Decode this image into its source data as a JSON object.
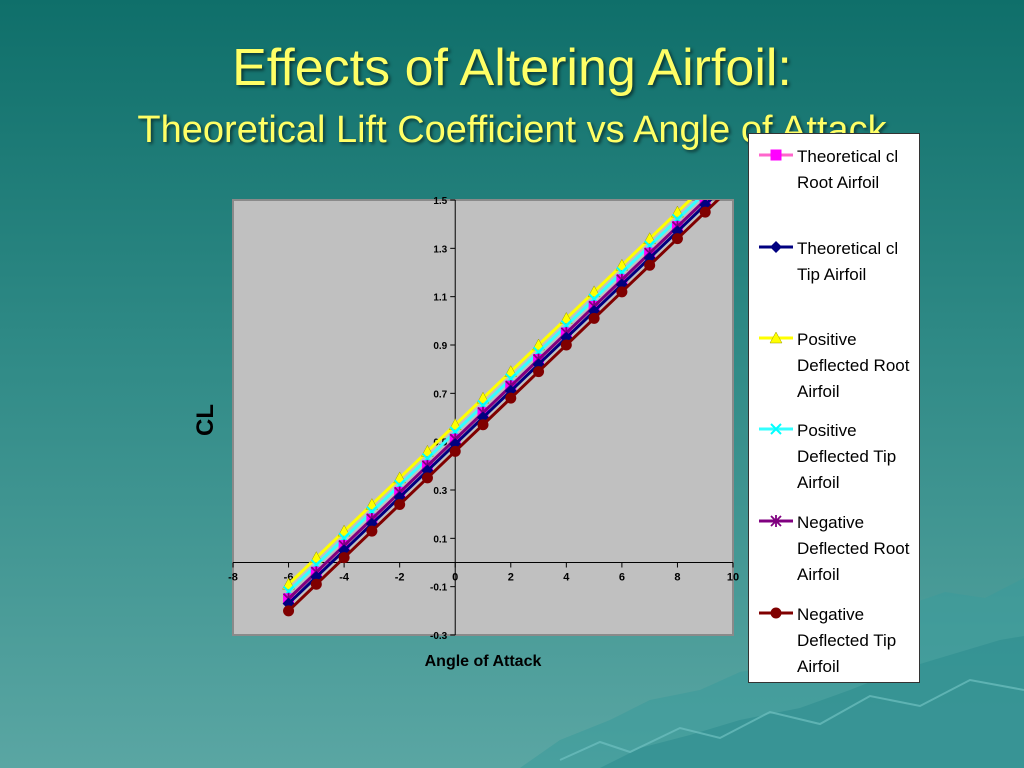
{
  "slide": {
    "title": "Effects of Altering Airfoil:",
    "subtitle": "Theoretical Lift Coefficient vs Angle of Attack"
  },
  "chart_data": {
    "type": "line",
    "xlabel": "Angle of Attack",
    "ylabel": "CL",
    "xlim": [
      -8,
      10
    ],
    "ylim": [
      -0.3,
      1.5
    ],
    "x_ticks": [
      -8,
      -6,
      -4,
      -2,
      0,
      2,
      4,
      6,
      8,
      10
    ],
    "y_ticks": [
      -0.3,
      -0.1,
      0.1,
      0.3,
      0.5,
      0.7,
      0.9,
      1.1,
      1.3,
      1.5
    ],
    "plot_background": "#c0c0c0",
    "grid": false,
    "legend_position": "right",
    "x": [
      -6,
      -5,
      -4,
      -3,
      -2,
      -1,
      0,
      1,
      2,
      3,
      4,
      5,
      6,
      7,
      8,
      9,
      10
    ],
    "series": [
      {
        "name": "Theoretical cl Root Airfoil",
        "color": "#ff00ff",
        "line_color": "#ff66cc",
        "marker": "square",
        "values": [
          -0.15,
          -0.04,
          0.07,
          0.18,
          0.29,
          0.4,
          0.51,
          0.62,
          0.73,
          0.84,
          0.95,
          1.06,
          1.17,
          1.28,
          1.39,
          1.5,
          1.61
        ]
      },
      {
        "name": "Theoretical cl Tip Airfoil",
        "color": "#000080",
        "line_color": "#000080",
        "marker": "diamond",
        "values": [
          -0.17,
          -0.06,
          0.05,
          0.16,
          0.27,
          0.38,
          0.49,
          0.6,
          0.71,
          0.82,
          0.93,
          1.04,
          1.15,
          1.26,
          1.37,
          1.48,
          1.59
        ]
      },
      {
        "name": "Positive Deflected Root Airfoil",
        "color": "#ffff00",
        "line_color": "#ffff00",
        "marker": "triangle",
        "values": [
          -0.09,
          0.02,
          0.13,
          0.24,
          0.35,
          0.46,
          0.57,
          0.68,
          0.79,
          0.9,
          1.01,
          1.12,
          1.23,
          1.34,
          1.45,
          1.56,
          1.67
        ]
      },
      {
        "name": "Positive Deflected Tip Airfoil",
        "color": "#00ffff",
        "line_color": "#33ffff",
        "marker": "x",
        "values": [
          -0.12,
          -0.01,
          0.1,
          0.21,
          0.32,
          0.43,
          0.54,
          0.65,
          0.76,
          0.87,
          0.98,
          1.09,
          1.2,
          1.31,
          1.42,
          1.53,
          1.64
        ]
      },
      {
        "name": "Negative Deflected Root Airfoil",
        "color": "#800080",
        "line_color": "#800080",
        "marker": "star",
        "values": [
          -0.15,
          -0.04,
          0.07,
          0.18,
          0.29,
          0.4,
          0.51,
          0.62,
          0.73,
          0.84,
          0.95,
          1.06,
          1.17,
          1.28,
          1.39,
          1.5,
          1.61
        ]
      },
      {
        "name": "Negative Deflected Tip Airfoil",
        "color": "#800000",
        "line_color": "#800000",
        "marker": "circle",
        "values": [
          -0.2,
          -0.09,
          0.02,
          0.13,
          0.24,
          0.35,
          0.46,
          0.57,
          0.68,
          0.79,
          0.9,
          1.01,
          1.12,
          1.23,
          1.34,
          1.45,
          1.56
        ]
      }
    ]
  }
}
